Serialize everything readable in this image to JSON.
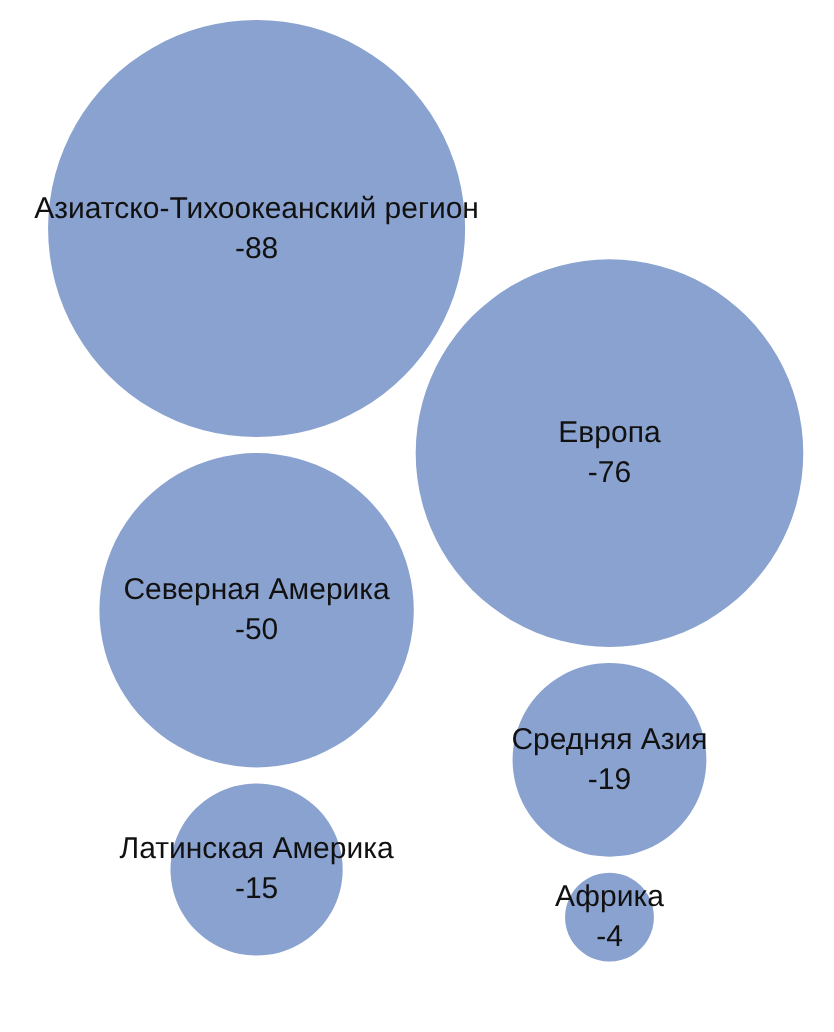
{
  "chart_data": {
    "type": "other",
    "categories": [
      "Азиатско-Тихоокеанский регион",
      "Европа",
      "Северная Америка",
      "Средняя Азия",
      "Латинская Америка",
      "Африка"
    ],
    "values": [
      -88,
      -76,
      -50,
      -19,
      -15,
      -4
    ],
    "color": "#8aa2cf",
    "data_labels": true
  }
}
